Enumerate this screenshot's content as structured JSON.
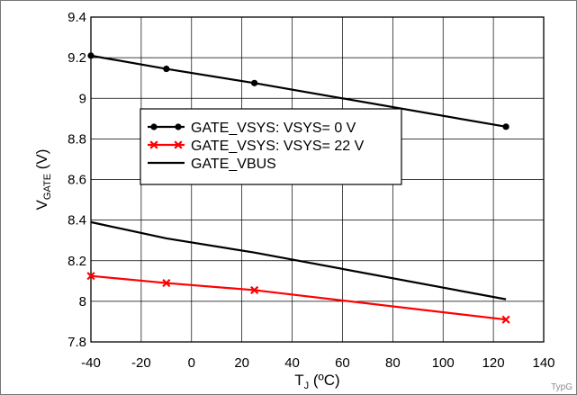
{
  "chart_data": {
    "type": "line",
    "title": "",
    "xlabel": {
      "main": "T",
      "sub": "J",
      "unit": " (ºC)"
    },
    "ylabel": {
      "main": "V",
      "sub": "GATE",
      "unit": " (V)"
    },
    "xlim": [
      -40,
      140
    ],
    "ylim": [
      7.8,
      9.4
    ],
    "xticks": [
      "-40",
      "-20",
      "0",
      "20",
      "40",
      "60",
      "80",
      "100",
      "120",
      "140"
    ],
    "yticks": [
      "7.8",
      "8",
      "8.2",
      "8.4",
      "8.6",
      "8.8",
      "9",
      "9.2",
      "9.4"
    ],
    "grid": true,
    "legend_placement": "center-left",
    "series": [
      {
        "name": "GATE_VSYS: VSYS= 0 V",
        "color": "#000000",
        "marker": "circle",
        "x": [
          -40,
          -10,
          25,
          125
        ],
        "y": [
          9.21,
          9.145,
          9.075,
          8.86
        ]
      },
      {
        "name": "GATE_VSYS: VSYS= 22 V",
        "color": "#ff0000",
        "marker": "x",
        "x": [
          -40,
          -10,
          25,
          125
        ],
        "y": [
          8.125,
          8.09,
          8.055,
          7.91
        ]
      },
      {
        "name": "GATE_VBUS",
        "color": "#000000",
        "marker": "none",
        "x": [
          -40,
          -10,
          25,
          125
        ],
        "y": [
          8.39,
          8.31,
          8.24,
          8.01
        ]
      }
    ]
  },
  "watermark": "TypG"
}
